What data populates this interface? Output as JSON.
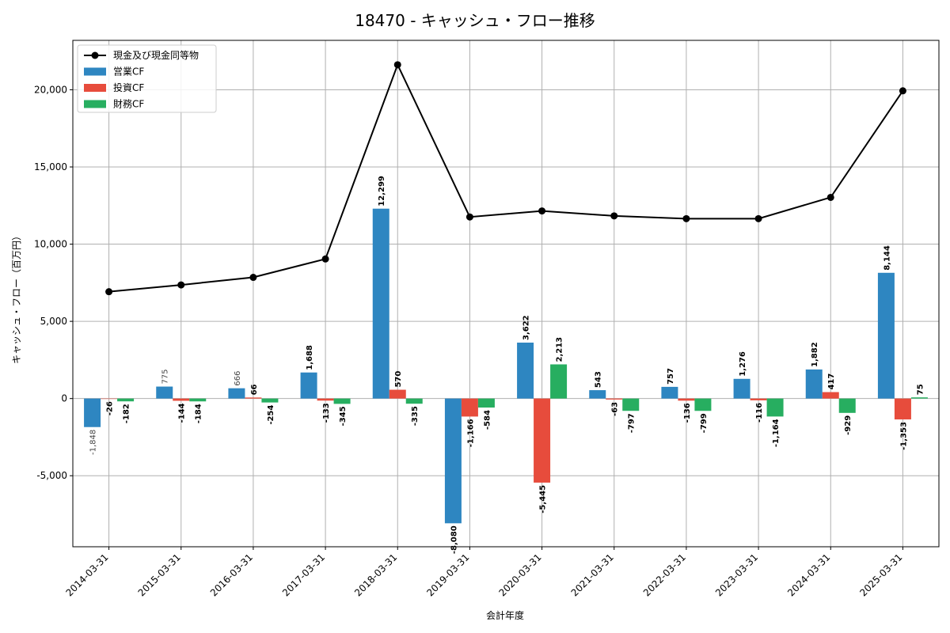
{
  "chart_data": {
    "type": "bar",
    "title": "18470 - キャッシュ・フロー推移",
    "xlabel": "会計年度",
    "ylabel": "キャッシュ・フロー（百万円）",
    "ylim": [
      -9600,
      23200
    ],
    "yticks": [
      -5000,
      0,
      5000,
      10000,
      15000,
      20000
    ],
    "ytick_labels": [
      "-5,000",
      "0",
      "5,000",
      "10,000",
      "15,000",
      "20,000"
    ],
    "grid": true,
    "legend_position": "top-left",
    "categories": [
      "2014-03-31",
      "2015-03-31",
      "2016-03-31",
      "2017-03-31",
      "2018-03-31",
      "2019-03-31",
      "2020-03-31",
      "2021-03-31",
      "2022-03-31",
      "2023-03-31",
      "2024-03-31",
      "2025-03-31"
    ],
    "series": [
      {
        "name": "営業CF",
        "kind": "bar",
        "color": "#2e86c1",
        "values": [
          -1848,
          775,
          666,
          1688,
          12299,
          -8080,
          3622,
          543,
          757,
          1276,
          1882,
          8144
        ],
        "labels": [
          "-1,848",
          "775",
          "666",
          "1,688",
          "12,299",
          "-8,080",
          "3,622",
          "543",
          "757",
          "1,276",
          "1,882",
          "8,144"
        ]
      },
      {
        "name": "投資CF",
        "kind": "bar",
        "color": "#e74c3c",
        "values": [
          -26,
          -144,
          66,
          -133,
          570,
          -1166,
          -5445,
          -63,
          -136,
          -116,
          417,
          -1353
        ],
        "labels": [
          "-26",
          "-144",
          "66",
          "-133",
          "570",
          "-1,166",
          "-5,445",
          "-63",
          "-136",
          "-116",
          "417",
          "-1,353"
        ]
      },
      {
        "name": "財務CF",
        "kind": "bar",
        "color": "#27ae60",
        "values": [
          -182,
          -184,
          -254,
          -345,
          -335,
          -584,
          2213,
          -797,
          -799,
          -1164,
          -929,
          75
        ],
        "labels": [
          "-182",
          "-184",
          "-254",
          "-345",
          "-335",
          "-584",
          "2,213",
          "-797",
          "-799",
          "-1,164",
          "-929",
          "75"
        ]
      },
      {
        "name": "現金及び現金同等物",
        "kind": "line",
        "color": "#000000",
        "values": [
          6920,
          7360,
          7850,
          9040,
          21620,
          11760,
          12150,
          11830,
          11650,
          11650,
          13030,
          19930
        ]
      }
    ]
  }
}
